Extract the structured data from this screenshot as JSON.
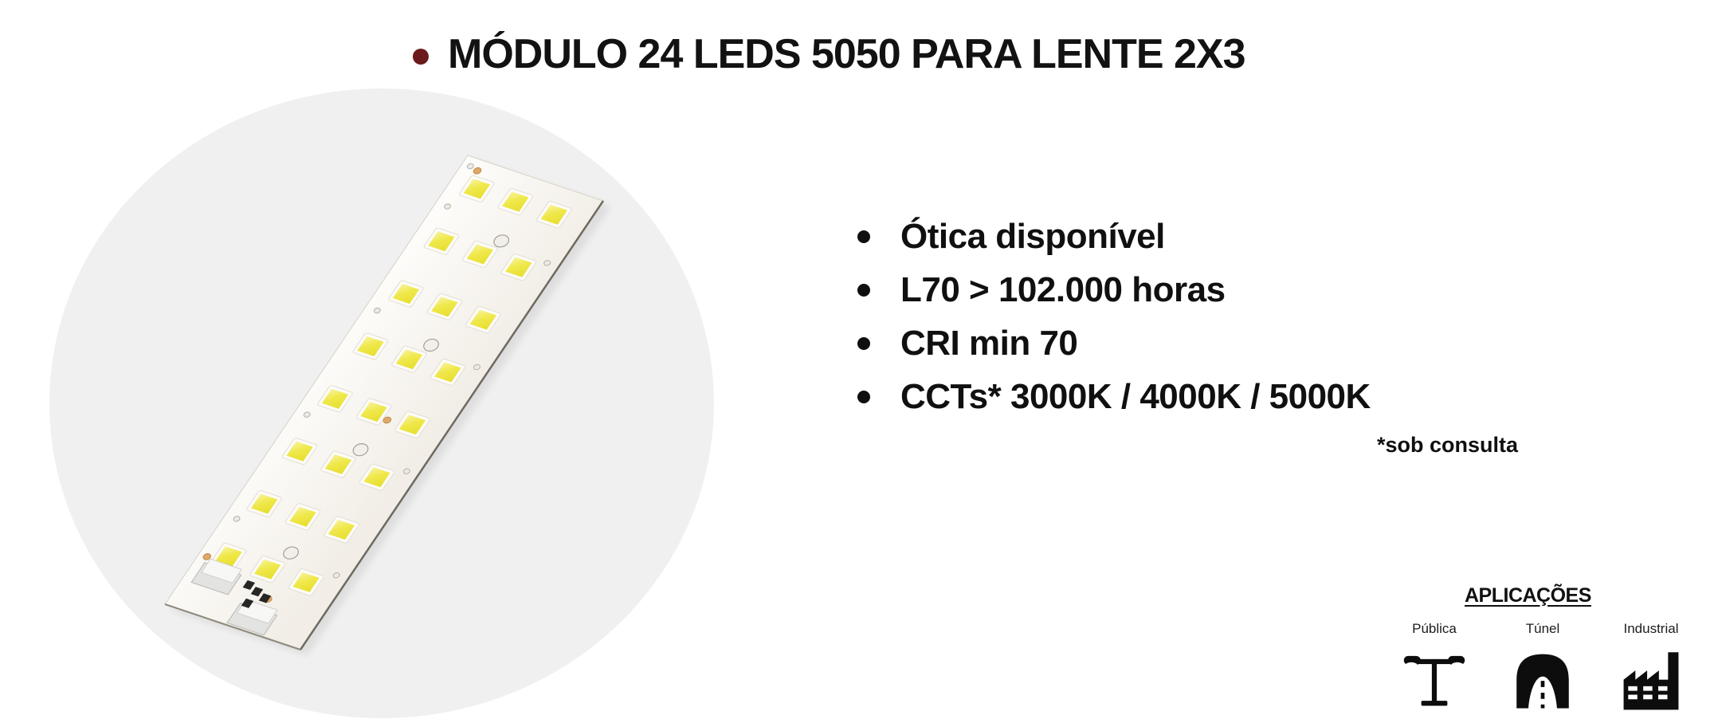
{
  "slide": {
    "title": "MÓDULO 24 LEDS 5050 PARA LENTE 2X3"
  },
  "features": {
    "items": [
      "Ótica disponível",
      "L70 > 102.000 horas",
      "CRI min 70",
      "CCTs* 3000K / 4000K / 5000K"
    ],
    "footnote": "*sob consulta"
  },
  "product_image": {
    "led_count": 24,
    "led_rows": 8,
    "led_columns": 3
  },
  "applications": {
    "heading": "APLICAÇÕES",
    "items": [
      {
        "label": "Pública",
        "icon": "street-light-icon"
      },
      {
        "label": "Túnel",
        "icon": "tunnel-icon"
      },
      {
        "label": "Industrial",
        "icon": "factory-icon"
      }
    ]
  },
  "colors": {
    "background": "#ffffff",
    "circle_backdrop": "#f0f0f0",
    "title_bullet": "#6b1b1b",
    "text": "#0f0f0f",
    "led_chip": "#ece43a",
    "fiducial_copper": "#dfa968",
    "icons": "#0d0d0d"
  }
}
